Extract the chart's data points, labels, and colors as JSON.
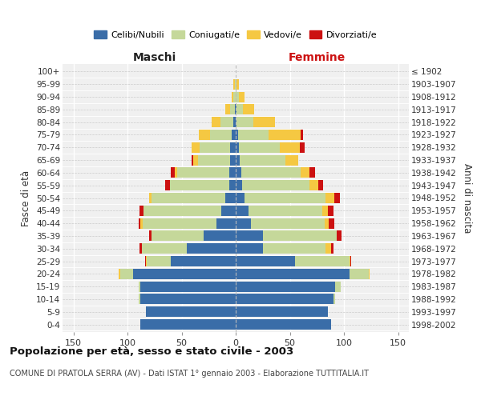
{
  "age_groups": [
    "0-4",
    "5-9",
    "10-14",
    "15-19",
    "20-24",
    "25-29",
    "30-34",
    "35-39",
    "40-44",
    "45-49",
    "50-54",
    "55-59",
    "60-64",
    "65-69",
    "70-74",
    "75-79",
    "80-84",
    "85-89",
    "90-94",
    "95-99",
    "100+"
  ],
  "birth_years": [
    "1998-2002",
    "1993-1997",
    "1988-1992",
    "1983-1987",
    "1978-1982",
    "1973-1977",
    "1968-1972",
    "1963-1967",
    "1958-1962",
    "1953-1957",
    "1948-1952",
    "1943-1947",
    "1938-1942",
    "1933-1937",
    "1928-1932",
    "1923-1927",
    "1918-1922",
    "1913-1917",
    "1908-1912",
    "1903-1907",
    "≤ 1902"
  ],
  "maschi": {
    "celibi": [
      88,
      83,
      88,
      88,
      95,
      60,
      45,
      30,
      18,
      13,
      10,
      6,
      6,
      5,
      5,
      4,
      2,
      1,
      0,
      0,
      0
    ],
    "coniugati": [
      0,
      0,
      2,
      2,
      12,
      22,
      42,
      48,
      68,
      72,
      68,
      55,
      48,
      30,
      28,
      20,
      12,
      4,
      2,
      1,
      0
    ],
    "vedovi": [
      0,
      0,
      0,
      0,
      1,
      1,
      0,
      0,
      2,
      0,
      2,
      0,
      2,
      4,
      8,
      10,
      8,
      5,
      2,
      1,
      0
    ],
    "divorziati": [
      0,
      0,
      0,
      0,
      0,
      1,
      2,
      2,
      2,
      4,
      0,
      4,
      4,
      2,
      0,
      0,
      0,
      0,
      0,
      0,
      0
    ]
  },
  "femmine": {
    "nubili": [
      88,
      85,
      90,
      92,
      105,
      55,
      25,
      25,
      14,
      12,
      8,
      6,
      5,
      4,
      3,
      2,
      1,
      1,
      0,
      0,
      0
    ],
    "coniugate": [
      0,
      0,
      2,
      5,
      18,
      50,
      58,
      68,
      68,
      68,
      75,
      62,
      55,
      42,
      38,
      28,
      15,
      6,
      3,
      1,
      0
    ],
    "vedove": [
      0,
      0,
      0,
      0,
      1,
      1,
      5,
      0,
      4,
      5,
      8,
      8,
      8,
      12,
      18,
      30,
      20,
      10,
      5,
      2,
      0
    ],
    "divorziate": [
      0,
      0,
      0,
      0,
      0,
      1,
      2,
      5,
      5,
      5,
      5,
      5,
      5,
      0,
      5,
      2,
      0,
      0,
      0,
      0,
      0
    ]
  },
  "colors": {
    "celibi": "#3a6da8",
    "coniugati": "#c5d89a",
    "vedovi": "#f5c842",
    "divorziati": "#cc1111"
  },
  "xlim": 160,
  "title": "Popolazione per età, sesso e stato civile - 2003",
  "subtitle": "COMUNE DI PRATOLA SERRA (AV) - Dati ISTAT 1° gennaio 2003 - Elaborazione TUTTITALIA.IT",
  "ylabel_left": "Fasce di età",
  "ylabel_right": "Anni di nascita",
  "xlabel_left": "Maschi",
  "xlabel_right": "Femmine",
  "bg_color": "#f0f0f0",
  "bar_height": 0.82
}
